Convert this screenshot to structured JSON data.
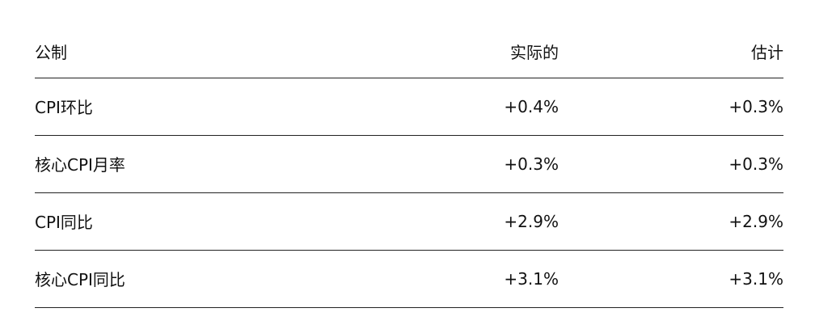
{
  "table": {
    "headers": [
      "公制",
      "实际的",
      "估计"
    ],
    "rows": [
      [
        "CPI环比",
        "+0.4%",
        "+0.3%"
      ],
      [
        "核心CPI月率",
        "+0.3%",
        "+0.3%"
      ],
      [
        "CPI同比",
        "+2.9%",
        "+2.9%"
      ],
      [
        "核心CPI同比",
        "+3.1%",
        "+3.1%"
      ]
    ]
  }
}
